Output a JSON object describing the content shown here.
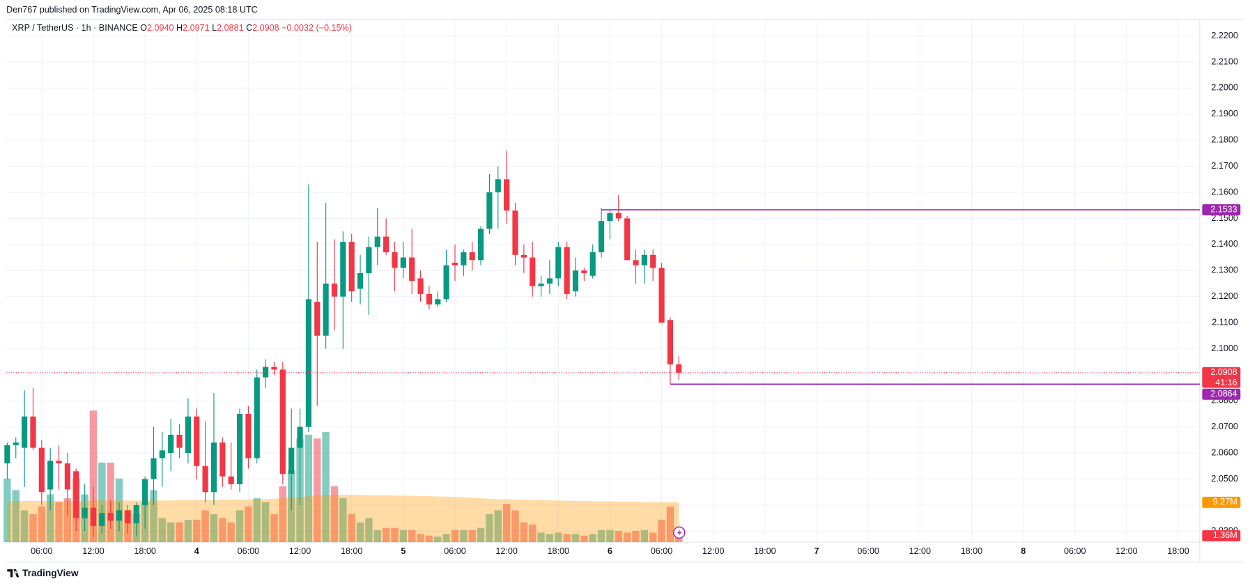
{
  "header": {
    "published": "Den767 published on TradingView.com, Apr 06, 2025 08:18 UTC"
  },
  "footer": {
    "brand": "TradingView"
  },
  "chart_data": {
    "type": "candlestick",
    "title": "XRP / TetherUS · 1h · BINANCE",
    "ohlc_legend": [
      {
        "key": "O",
        "value": "2.0940"
      },
      {
        "key": "H",
        "value": "2.0971"
      },
      {
        "key": "L",
        "value": "2.0881"
      },
      {
        "key": "C",
        "value": "2.0908"
      }
    ],
    "change": "−0.0032 (−0.15%)",
    "up_color": "#089981",
    "down_color": "#f23645",
    "grid": true,
    "x": [
      2,
      3,
      4,
      5,
      6,
      7,
      8,
      9,
      10,
      11,
      12,
      13,
      14,
      15,
      16,
      17,
      18,
      19,
      20,
      21,
      22,
      23,
      24,
      25,
      26,
      27,
      28,
      29,
      30,
      31,
      32,
      33,
      34,
      35,
      36,
      37,
      38,
      39,
      40,
      41,
      42,
      43,
      44,
      45,
      46,
      47,
      48,
      49,
      50,
      51,
      52,
      53,
      54,
      55,
      56,
      57,
      58,
      59,
      60,
      61,
      62,
      63,
      64,
      65,
      66,
      67,
      68,
      69,
      70,
      71,
      72,
      73,
      74,
      75,
      76,
      77,
      78,
      79,
      80
    ],
    "open": [
      2.056,
      2.063,
      2.062,
      2.074,
      2.062,
      2.046,
      2.057,
      2.056,
      2.053,
      2.035,
      2.039,
      2.032,
      2.037,
      2.034,
      2.038,
      2.033,
      2.04,
      2.05,
      2.058,
      2.06,
      2.067,
      2.06,
      2.074,
      2.055,
      2.045,
      2.064,
      2.051,
      2.048,
      2.075,
      2.058,
      2.089,
      2.093,
      2.092,
      2.052,
      2.062,
      2.07,
      2.118,
      2.105,
      2.125,
      2.12,
      2.141,
      2.123,
      2.129,
      2.139,
      2.143,
      2.137,
      2.131,
      2.135,
      2.127,
      2.121,
      2.117,
      2.119,
      2.133,
      2.132,
      2.137,
      2.134,
      2.146,
      2.16,
      2.165,
      2.153,
      2.136,
      2.135,
      2.124,
      2.125,
      2.127,
      2.139,
      2.122,
      2.13,
      2.128,
      2.137,
      2.149,
      2.152,
      2.15,
      2.134,
      2.132,
      2.136,
      2.131,
      2.111,
      2.094
    ],
    "high": [
      2.064,
      2.066,
      2.084,
      2.085,
      2.065,
      2.062,
      2.063,
      2.06,
      2.054,
      2.048,
      2.047,
      2.04,
      2.042,
      2.041,
      2.04,
      2.041,
      2.051,
      2.07,
      2.068,
      2.073,
      2.071,
      2.081,
      2.077,
      2.072,
      2.083,
      2.066,
      2.064,
      2.077,
      2.078,
      2.092,
      2.096,
      2.095,
      2.095,
      2.077,
      2.077,
      2.163,
      2.141,
      2.156,
      2.142,
      2.145,
      2.144,
      2.136,
      2.143,
      2.154,
      2.15,
      2.141,
      2.141,
      2.146,
      2.13,
      2.124,
      2.122,
      2.138,
      2.14,
      2.138,
      2.141,
      2.147,
      2.167,
      2.17,
      2.176,
      2.156,
      2.14,
      2.141,
      2.128,
      2.134,
      2.141,
      2.141,
      2.135,
      2.131,
      2.14,
      2.154,
      2.153,
      2.159,
      2.151,
      2.138,
      2.138,
      2.138,
      2.133,
      2.112,
      2.0971
    ],
    "low": [
      2.05,
      2.058,
      2.047,
      2.061,
      2.04,
      2.038,
      2.046,
      2.036,
      2.03,
      2.03,
      2.028,
      2.029,
      2.031,
      2.03,
      2.029,
      2.028,
      2.031,
      2.04,
      2.047,
      2.053,
      2.058,
      2.056,
      2.05,
      2.041,
      2.04,
      2.047,
      2.046,
      2.045,
      2.054,
      2.056,
      2.085,
      2.09,
      2.048,
      2.038,
      2.04,
      2.068,
      2.078,
      2.1,
      2.107,
      2.1,
      2.118,
      2.117,
      2.113,
      2.132,
      2.136,
      2.122,
      2.127,
      2.121,
      2.118,
      2.115,
      2.116,
      2.118,
      2.126,
      2.128,
      2.13,
      2.132,
      2.144,
      2.146,
      2.148,
      2.132,
      2.129,
      2.12,
      2.12,
      2.121,
      2.124,
      2.119,
      2.12,
      2.126,
      2.127,
      2.135,
      2.142,
      2.149,
      2.134,
      2.125,
      2.125,
      2.126,
      2.11,
      2.0864,
      2.0881
    ],
    "close": [
      2.063,
      2.064,
      2.074,
      2.062,
      2.045,
      2.057,
      2.056,
      2.046,
      2.035,
      2.039,
      2.032,
      2.037,
      2.034,
      2.038,
      2.033,
      2.04,
      2.05,
      2.058,
      2.061,
      2.067,
      2.062,
      2.074,
      2.055,
      2.045,
      2.064,
      2.051,
      2.048,
      2.075,
      2.058,
      2.089,
      2.093,
      2.092,
      2.052,
      2.062,
      2.07,
      2.119,
      2.105,
      2.125,
      2.12,
      2.141,
      2.122,
      2.129,
      2.139,
      2.143,
      2.137,
      2.131,
      2.135,
      2.126,
      2.121,
      2.117,
      2.119,
      2.132,
      2.132,
      2.137,
      2.134,
      2.146,
      2.16,
      2.165,
      2.153,
      2.136,
      2.135,
      2.124,
      2.125,
      2.127,
      2.139,
      2.121,
      2.13,
      2.129,
      2.137,
      2.149,
      2.152,
      2.15,
      2.134,
      2.132,
      2.136,
      2.131,
      2.11,
      2.094,
      2.0908
    ],
    "volume": {
      "values": [
        14.8,
        12.1,
        7.4,
        6.5,
        8.3,
        11.1,
        9.3,
        10.2,
        14.8,
        11.1,
        30.6,
        18.5,
        18.5,
        14.8,
        7.4,
        6.5,
        9.3,
        12.1,
        5.6,
        4.6,
        4.6,
        5.2,
        5.2,
        7.4,
        6.5,
        5.6,
        4.6,
        7.4,
        8.3,
        10.2,
        9.3,
        6.5,
        13.0,
        16.7,
        24.1,
        25.0,
        24.1,
        25.6,
        13.0,
        10.2,
        6.5,
        4.6,
        5.6,
        2.8,
        3.3,
        3.3,
        2.8,
        2.8,
        1.9,
        1.5,
        1.3,
        1.9,
        2.8,
        2.8,
        2.8,
        3.3,
        6.5,
        7.4,
        8.9,
        7.4,
        4.6,
        4.1,
        2.2,
        1.9,
        2.2,
        1.9,
        1.9,
        1.5,
        1.9,
        2.8,
        2.8,
        2.6,
        2.2,
        2.6,
        2.8,
        2.2,
        5.2,
        8.3,
        1.36
      ],
      "last_label": "1.36M"
    },
    "volume_ma": {
      "color": "#ff9800",
      "values": [
        9.6,
        9.6,
        9.6,
        9.6,
        9.6,
        9.6,
        9.6,
        9.6,
        9.6,
        9.6,
        9.7,
        9.7,
        9.7,
        9.7,
        9.7,
        9.7,
        9.7,
        9.7,
        9.7,
        9.7,
        9.8,
        9.8,
        9.8,
        9.8,
        9.8,
        9.9,
        9.9,
        9.9,
        9.9,
        10.0,
        10.0,
        10.1,
        10.2,
        10.3,
        10.5,
        10.7,
        10.8,
        10.9,
        11.0,
        11.0,
        11.0,
        11.0,
        10.9,
        10.9,
        10.9,
        10.8,
        10.8,
        10.8,
        10.7,
        10.7,
        10.6,
        10.6,
        10.5,
        10.4,
        10.3,
        10.2,
        10.1,
        10.0,
        10.0,
        9.9,
        9.9,
        9.8,
        9.8,
        9.7,
        9.7,
        9.6,
        9.6,
        9.6,
        9.5,
        9.5,
        9.5,
        9.4,
        9.4,
        9.4,
        9.3,
        9.3,
        9.3,
        9.3,
        9.27
      ],
      "last_label": "9.27M"
    },
    "hlines": [
      {
        "value": 2.1533,
        "label": "2.1533",
        "x_start": 71,
        "color": "#9c27b0"
      },
      {
        "value": 2.0864,
        "label": "2.0864",
        "x_start": 79,
        "color": "#9c27b0"
      }
    ],
    "last_price": {
      "value": 2.0908,
      "label": "2.0908",
      "countdown": "41:16",
      "color": "#f23645"
    },
    "xlim": [
      1.9,
      140.5
    ],
    "xticks": [
      {
        "value": 6,
        "label": "06:00"
      },
      {
        "value": 12,
        "label": "12:00"
      },
      {
        "value": 18,
        "label": "18:00"
      },
      {
        "value": 24,
        "label": "4"
      },
      {
        "value": 30,
        "label": "06:00"
      },
      {
        "value": 36,
        "label": "12:00"
      },
      {
        "value": 42,
        "label": "18:00"
      },
      {
        "value": 48,
        "label": "5"
      },
      {
        "value": 54,
        "label": "06:00"
      },
      {
        "value": 60,
        "label": "12:00"
      },
      {
        "value": 66,
        "label": "18:00"
      },
      {
        "value": 72,
        "label": "6"
      },
      {
        "value": 78,
        "label": "06:00"
      },
      {
        "value": 84,
        "label": "12:00"
      },
      {
        "value": 90,
        "label": "18:00"
      },
      {
        "value": 96,
        "label": "7"
      },
      {
        "value": 102,
        "label": "06:00"
      },
      {
        "value": 108,
        "label": "12:00"
      },
      {
        "value": 114,
        "label": "18:00"
      },
      {
        "value": 120,
        "label": "8"
      },
      {
        "value": 126,
        "label": "06:00"
      },
      {
        "value": 132,
        "label": "12:00"
      },
      {
        "value": 138,
        "label": "18:00"
      }
    ],
    "ylim": [
      2.0258,
      2.2246
    ],
    "yticks": [
      {
        "value": 2.03,
        "label": "2.0300"
      },
      {
        "value": 2.04,
        "label": "2.0400"
      },
      {
        "value": 2.05,
        "label": "2.0500"
      },
      {
        "value": 2.06,
        "label": "2.0600"
      },
      {
        "value": 2.07,
        "label": "2.0700"
      },
      {
        "value": 2.08,
        "label": "2.0800"
      },
      {
        "value": 2.09,
        "label": "2.0900"
      },
      {
        "value": 2.1,
        "label": "2.1000"
      },
      {
        "value": 2.11,
        "label": "2.1100"
      },
      {
        "value": 2.12,
        "label": "2.1200"
      },
      {
        "value": 2.13,
        "label": "2.1300"
      },
      {
        "value": 2.14,
        "label": "2.1400"
      },
      {
        "value": 2.15,
        "label": "2.1500"
      },
      {
        "value": 2.16,
        "label": "2.1600"
      },
      {
        "value": 2.17,
        "label": "2.1700"
      },
      {
        "value": 2.18,
        "label": "2.1800"
      },
      {
        "value": 2.19,
        "label": "2.1900"
      },
      {
        "value": 2.2,
        "label": "2.2000"
      },
      {
        "value": 2.21,
        "label": "2.2100"
      },
      {
        "value": 2.22,
        "label": "2.2200"
      }
    ]
  }
}
